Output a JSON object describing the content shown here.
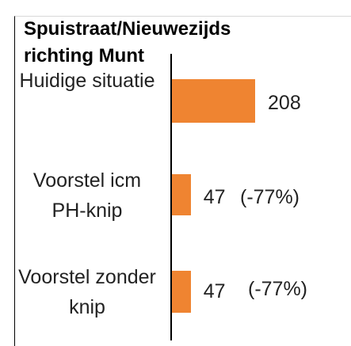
{
  "chart_data": {
    "type": "bar",
    "orientation": "horizontal",
    "title": "Spuistraat/Nieuwezijds richting Munt",
    "categories": [
      "Huidige situatie",
      "Voorstel icm PH-knip",
      "Voorstel zonder knip"
    ],
    "values": [
      208,
      47,
      47
    ],
    "change_labels": [
      "(-77%)",
      "(-77%)"
    ],
    "color": "#ef8431"
  }
}
